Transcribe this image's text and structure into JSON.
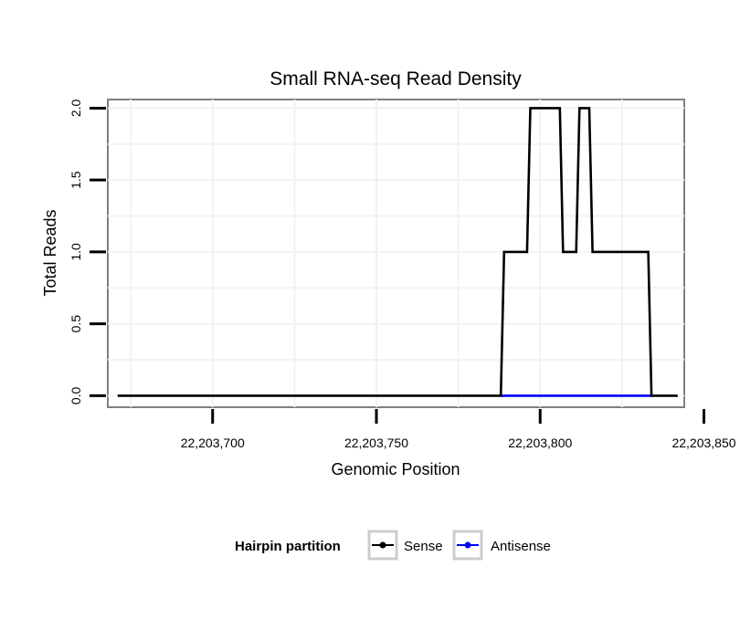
{
  "chart_data": {
    "type": "line",
    "title": "Small RNA-seq Read Density",
    "xlabel": "Genomic Position",
    "ylabel": "Total Reads",
    "xlim": [
      22203668,
      22203844
    ],
    "ylim": [
      -0.08,
      2.06
    ],
    "xticks": [
      22203700,
      22203750,
      22203800,
      22203850
    ],
    "xtick_labels": [
      "22,203,700",
      "22,203,750",
      "22,203,800",
      "22,203,850"
    ],
    "yticks": [
      0.0,
      0.5,
      1.0,
      1.5,
      2.0
    ],
    "ytick_labels": [
      "0.0",
      "0.5",
      "1.0",
      "1.5",
      "2.0"
    ],
    "grid": true,
    "legend": {
      "title": "Hairpin partition",
      "position": "bottom"
    },
    "series": [
      {
        "name": "Sense",
        "color": "#000000",
        "x": [
          22203671,
          22203788,
          22203789,
          22203796,
          22203797,
          22203806,
          22203807,
          22203811,
          22203812,
          22203815,
          22203816,
          22203833,
          22203834,
          22203842
        ],
        "y": [
          0,
          0,
          1,
          1,
          2,
          2,
          1,
          1,
          2,
          2,
          1,
          1,
          0,
          0
        ]
      },
      {
        "name": "Antisense",
        "color": "#0000ff",
        "x": [
          22203788,
          22203834
        ],
        "y": [
          0,
          0
        ]
      }
    ]
  }
}
